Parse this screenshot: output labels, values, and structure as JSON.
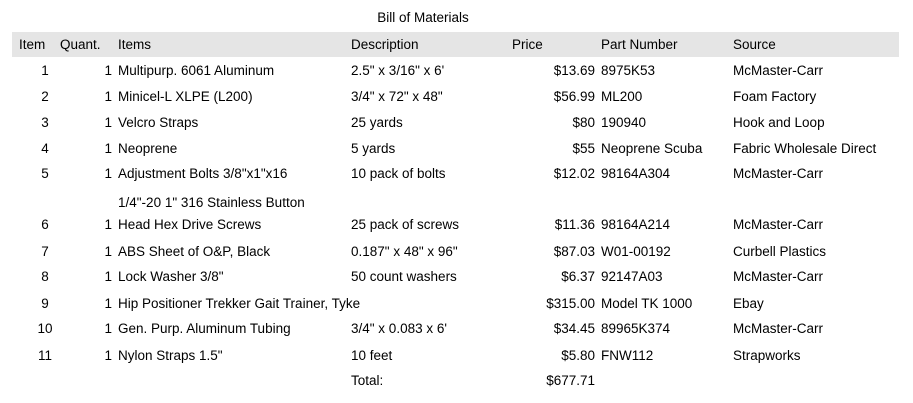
{
  "title": "Bill of Materials",
  "headers": {
    "item": "Item",
    "quantity": "Quant.",
    "items": "Items",
    "description": "Description",
    "price": "Price",
    "part_number": "Part Number",
    "source": "Source"
  },
  "rows": [
    {
      "item": "1",
      "quantity": "1",
      "items": "Multipurp. 6061 Aluminum",
      "description": "2.5\" x 3/16\" x 6'",
      "price": "$13.69",
      "part_number": "8975K53",
      "source": "McMaster-Carr"
    },
    {
      "item": "2",
      "quantity": "1",
      "items": "Minicel-L XLPE (L200)",
      "description": "3/4\" x 72\" x 48\"",
      "price": "$56.99",
      "part_number": "ML200",
      "source": "Foam Factory"
    },
    {
      "item": "3",
      "quantity": "1",
      "items": "Velcro Straps",
      "description": "25 yards",
      "price": "$80",
      "part_number": "190940",
      "source": "Hook and Loop"
    },
    {
      "item": "4",
      "quantity": "1",
      "items": "Neoprene",
      "description": "5 yards",
      "price": "$55",
      "part_number": "Neoprene Scuba",
      "source": "Fabric Wholesale Direct"
    },
    {
      "item": "5",
      "quantity": "1",
      "items": "Adjustment Bolts 3/8\"x1\"x16",
      "description": "10 pack of bolts",
      "price": "$12.02",
      "part_number": "98164A304",
      "source": "McMaster-Carr"
    },
    {
      "item": "",
      "quantity": "",
      "items": "1/4\"-20 1\" 316 Stainless Button",
      "description": "",
      "price": "",
      "part_number": "",
      "source": ""
    },
    {
      "item": "6",
      "quantity": "1",
      "items": "Head Hex Drive Screws",
      "description": "25 pack of screws",
      "price": "$11.36",
      "part_number": "98164A214",
      "source": "McMaster-Carr"
    },
    {
      "item": "7",
      "quantity": "1",
      "items": "ABS Sheet of O&P, Black",
      "description": "0.187\" x 48\" x 96\"",
      "price": "$87.03",
      "part_number": "W01-00192",
      "source": "Curbell Plastics"
    },
    {
      "item": "8",
      "quantity": "1",
      "items": "Lock Washer 3/8\"",
      "description": "50 count washers",
      "price": "$6.37",
      "part_number": "92147A03",
      "source": "McMaster-Carr"
    },
    {
      "item": "9",
      "quantity": "1",
      "items": "Hip Positioner Trekker Gait Trainer, Tyke",
      "description": "",
      "price": "$315.00",
      "part_number": "Model TK 1000",
      "source": "Ebay"
    },
    {
      "item": "10",
      "quantity": "1",
      "items": "Gen. Purp. Aluminum Tubing",
      "description": "3/4\" x 0.083 x 6'",
      "price": "$34.45",
      "part_number": "89965K374",
      "source": "McMaster-Carr"
    },
    {
      "item": "11",
      "quantity": "1",
      "items": "Nylon Straps 1.5\"",
      "description": "10 feet",
      "price": "$5.80",
      "part_number": "FNW112",
      "source": "Strapworks"
    }
  ],
  "total": {
    "label": "Total:",
    "value": "$677.71"
  },
  "colors": {
    "header_background": "#e5e5e5",
    "text": "#000000",
    "background": "#ffffff"
  }
}
